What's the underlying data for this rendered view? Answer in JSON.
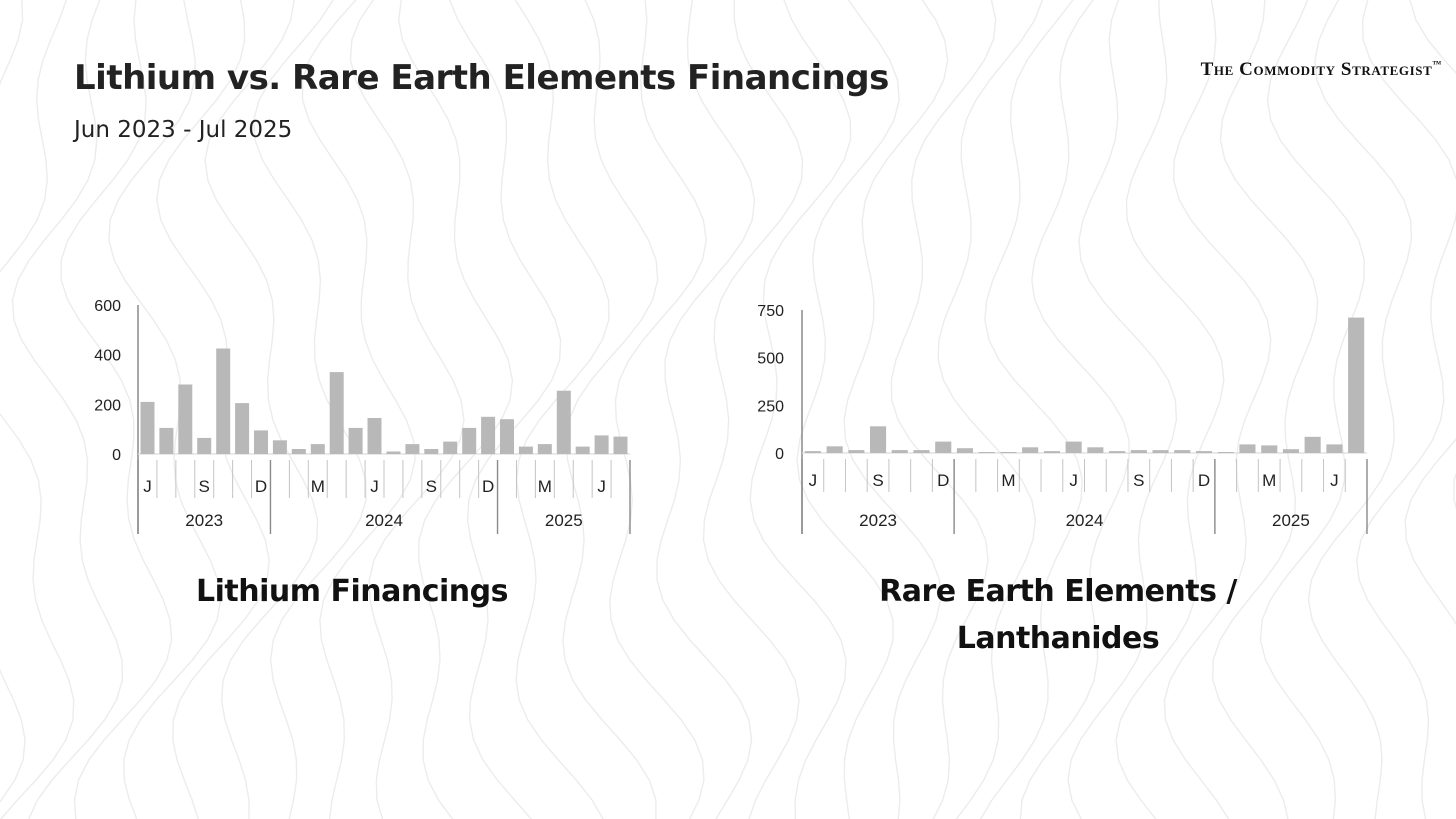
{
  "header": {
    "title": "Lithium vs. Rare Earth Elements Financings",
    "subtitle": "Jun 2023 - Jul 2025",
    "brand": "The Commodity Strategist",
    "brand_tm": "™"
  },
  "captions": {
    "lithium": "Lithium Financings",
    "ree": "Rare Earth Elements / Lanthanides"
  },
  "colors": {
    "bar": "#b8b8b8",
    "axis": "#8a8a8a",
    "text": "#222222",
    "contour": "#ececec"
  },
  "chart_data": [
    {
      "type": "bar",
      "name": "lithium",
      "title": "",
      "xlabel": "",
      "ylabel": "",
      "ylim": [
        0,
        600
      ],
      "yticks": [
        0,
        200,
        400,
        600
      ],
      "grid": false,
      "categories": [
        "Jun 2023",
        "Jul 2023",
        "Aug 2023",
        "Sep 2023",
        "Oct 2023",
        "Nov 2023",
        "Dec 2023",
        "Jan 2024",
        "Feb 2024",
        "Mar 2024",
        "Apr 2024",
        "May 2024",
        "Jun 2024",
        "Jul 2024",
        "Aug 2024",
        "Sep 2024",
        "Oct 2024",
        "Nov 2024",
        "Dec 2024",
        "Jan 2025",
        "Feb 2025",
        "Mar 2025",
        "Apr 2025",
        "May 2025",
        "Jun 2025",
        "Jul 2025"
      ],
      "values": [
        210,
        105,
        280,
        65,
        425,
        205,
        95,
        55,
        20,
        40,
        330,
        105,
        145,
        10,
        40,
        20,
        50,
        105,
        150,
        140,
        30,
        40,
        255,
        30,
        75,
        70
      ],
      "month_labels": [
        {
          "i": 0,
          "t": "J"
        },
        {
          "i": 3,
          "t": "S"
        },
        {
          "i": 6,
          "t": "D"
        },
        {
          "i": 9,
          "t": "M"
        },
        {
          "i": 12,
          "t": "J"
        },
        {
          "i": 15,
          "t": "S"
        },
        {
          "i": 18,
          "t": "D"
        },
        {
          "i": 21,
          "t": "M"
        },
        {
          "i": 24,
          "t": "J"
        }
      ],
      "year_labels": [
        {
          "from": 0,
          "to": 6,
          "t": "2023"
        },
        {
          "from": 7,
          "to": 18,
          "t": "2024"
        },
        {
          "from": 19,
          "to": 25,
          "t": "2025"
        }
      ]
    },
    {
      "type": "bar",
      "name": "ree",
      "title": "",
      "xlabel": "",
      "ylabel": "",
      "ylim": [
        0,
        750
      ],
      "yticks": [
        0,
        250,
        500,
        750
      ],
      "grid": false,
      "categories": [
        "Jun 2023",
        "Jul 2023",
        "Aug 2023",
        "Sep 2023",
        "Oct 2023",
        "Nov 2023",
        "Dec 2023",
        "Jan 2024",
        "Feb 2024",
        "Mar 2024",
        "Apr 2024",
        "May 2024",
        "Jun 2024",
        "Jul 2024",
        "Aug 2024",
        "Sep 2024",
        "Oct 2024",
        "Nov 2024",
        "Dec 2024",
        "Jan 2025",
        "Feb 2025",
        "Mar 2025",
        "Apr 2025",
        "May 2025",
        "Jun 2025",
        "Jul 2025"
      ],
      "values": [
        10,
        35,
        15,
        140,
        15,
        15,
        60,
        25,
        5,
        5,
        30,
        10,
        60,
        30,
        10,
        15,
        15,
        15,
        10,
        5,
        45,
        40,
        20,
        85,
        45,
        710
      ],
      "month_labels": [
        {
          "i": 0,
          "t": "J"
        },
        {
          "i": 3,
          "t": "S"
        },
        {
          "i": 6,
          "t": "D"
        },
        {
          "i": 9,
          "t": "M"
        },
        {
          "i": 12,
          "t": "J"
        },
        {
          "i": 15,
          "t": "S"
        },
        {
          "i": 18,
          "t": "D"
        },
        {
          "i": 21,
          "t": "M"
        },
        {
          "i": 24,
          "t": "J"
        }
      ],
      "year_labels": [
        {
          "from": 0,
          "to": 6,
          "t": "2023"
        },
        {
          "from": 7,
          "to": 18,
          "t": "2024"
        },
        {
          "from": 19,
          "to": 25,
          "t": "2025"
        }
      ]
    }
  ]
}
